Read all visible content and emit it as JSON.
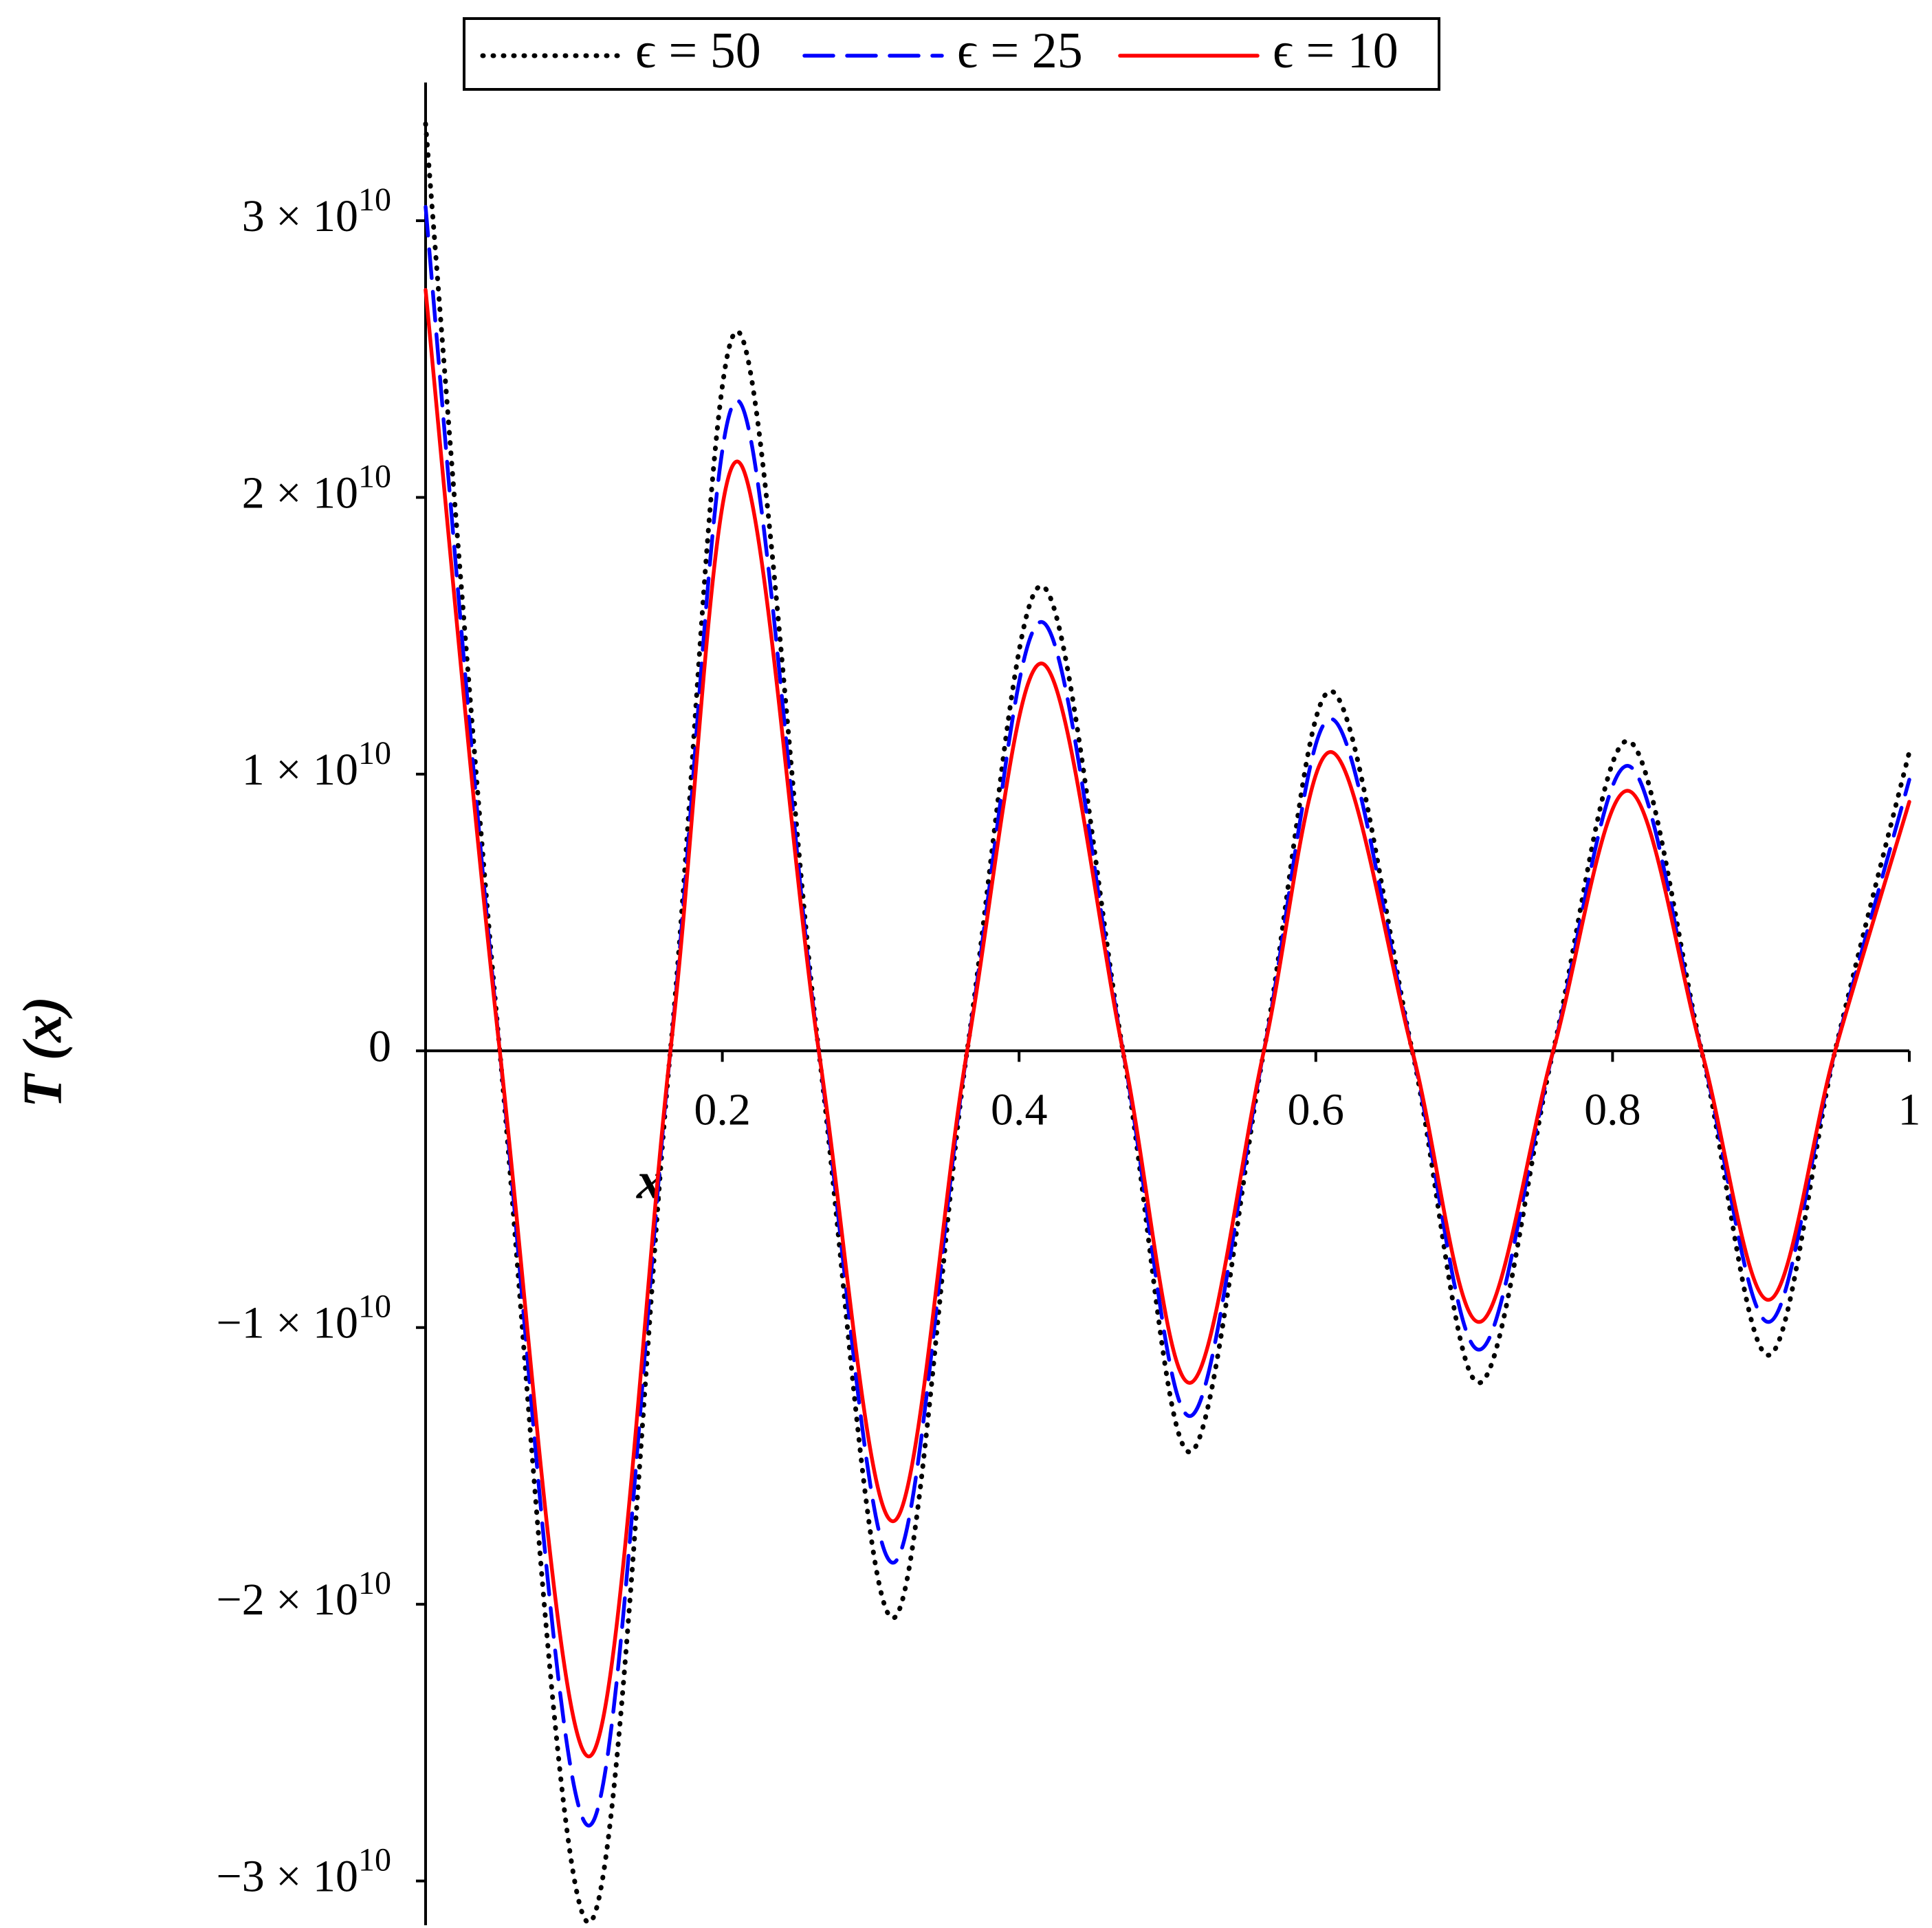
{
  "chart_data": {
    "type": "line",
    "legend_position": "top",
    "xlabel": "x",
    "ylabel": "T (x)",
    "x": [
      0,
      0.05,
      0.11,
      0.165,
      0.21,
      0.265,
      0.315,
      0.365,
      0.415,
      0.47,
      0.515,
      0.565,
      0.61,
      0.665,
      0.71,
      0.76,
      0.81,
      0.86,
      0.905,
      0.95,
      1.0
    ],
    "series": [
      {
        "name": "ϵ = 50",
        "color": "#000000",
        "style": "dotted",
        "values": [
          33500000000,
          0,
          -31500000000,
          0,
          26000000000,
          0,
          -20500000000,
          0,
          16800000000,
          0,
          -14500000000,
          0,
          13000000000,
          0,
          -12000000000,
          0,
          11200000000,
          0,
          -11000000000,
          0,
          10800000000
        ]
      },
      {
        "name": "ϵ = 25",
        "color": "#0000ff",
        "style": "dashed",
        "values": [
          30500000000,
          0,
          -28000000000,
          0,
          23500000000,
          0,
          -18500000000,
          0,
          15500000000,
          0,
          -13200000000,
          0,
          12000000000,
          0,
          -10800000000,
          0,
          10300000000,
          0,
          -9800000000,
          0,
          9800000000
        ]
      },
      {
        "name": "ϵ = 10",
        "color": "#ff0000",
        "style": "solid",
        "values": [
          27500000000,
          0,
          -25500000000,
          0,
          21300000000,
          0,
          -17000000000,
          0,
          14000000000,
          0,
          -12000000000,
          0,
          10800000000,
          0,
          -9800000000,
          0,
          9400000000,
          0,
          -9000000000,
          0,
          9000000000
        ]
      }
    ],
    "xlim": [
      0,
      1
    ],
    "xticks": [
      0.2,
      0.4,
      0.6,
      0.8,
      1
    ],
    "ylim": [
      -31600000000,
      34000000000
    ],
    "yticks": [
      {
        "value": -30000000000,
        "label": "−3 × 10",
        "superscript": "10"
      },
      {
        "value": -20000000000,
        "label": "−2 × 10",
        "superscript": "10"
      },
      {
        "value": -10000000000,
        "label": "−1 × 10",
        "superscript": "10"
      },
      0,
      {
        "value": 10000000000,
        "label": "1 × 10",
        "superscript": "10"
      },
      {
        "value": 20000000000,
        "label": "2 × 10",
        "superscript": "10"
      },
      {
        "value": 30000000000,
        "label": "3 × 10",
        "superscript": "10"
      }
    ],
    "grid": false
  }
}
